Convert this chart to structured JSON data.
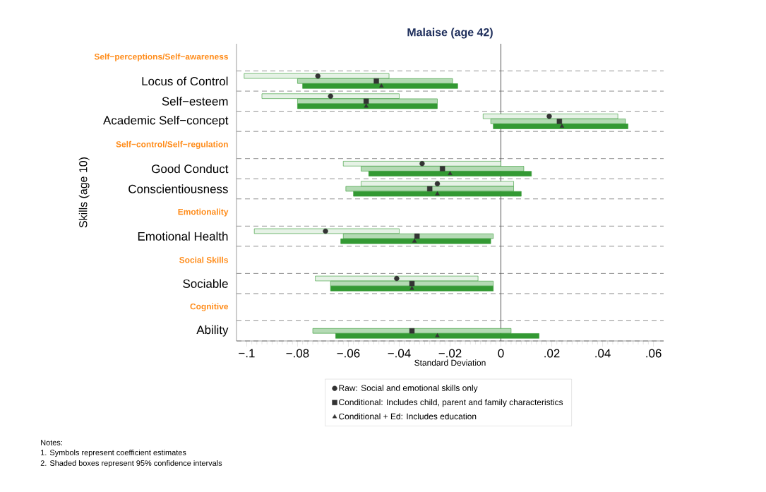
{
  "chart_data": {
    "type": "bar",
    "orientation": "horizontal",
    "title": "Malaise (age 42)",
    "xlabel": "Standard Deviation",
    "ylabel": "Skills (age 10)",
    "categories": [
      "Self−perceptions/Self−awareness",
      "Locus of Control",
      "Self−esteem",
      "Academic Self−concept",
      "Self−control/Self−regulation",
      "Good Conduct",
      "Conscientiousness",
      "Emotionality",
      "Emotional Health",
      "Social Skills",
      "Sociable",
      "Cognitive",
      "Ability"
    ],
    "xlim": [
      -0.104,
      0.064
    ],
    "xticks": [
      {
        "value": -0.1,
        "label": "−.1"
      },
      {
        "value": -0.08,
        "label": "−.08"
      },
      {
        "value": -0.06,
        "label": "−.06"
      },
      {
        "value": -0.04,
        "label": "−.04"
      },
      {
        "value": -0.02,
        "label": "−.02"
      },
      {
        "value": 0,
        "label": "0"
      },
      {
        "value": 0.02,
        "label": ".02"
      },
      {
        "value": 0.04,
        "label": ".04"
      },
      {
        "value": 0.06,
        "label": ".06"
      }
    ],
    "grid": "y",
    "legend": "bottom",
    "ref_lines": [
      {
        "axis": "x",
        "value": 0
      }
    ],
    "annotations": [
      "Notes:",
      "1. Symbols represent coefficient estimates",
      "2. Shaded boxes represent 95% confidence intervals"
    ],
    "series": [
      {
        "color": "#e6f2e6",
        "base": [
          null,
          -0.101,
          -0.094,
          -0.007,
          null,
          -0.062,
          -0.055,
          null,
          -0.097,
          null,
          -0.073,
          null,
          null
        ],
        "values": [
          null,
          0.057,
          0.054,
          0.053,
          null,
          0.062,
          0.06,
          null,
          0.057,
          null,
          0.064,
          null,
          null
        ]
      },
      {
        "color": "#b4dab4",
        "base": [
          null,
          -0.08,
          -0.08,
          -0.004,
          null,
          -0.055,
          -0.061,
          null,
          -0.062,
          null,
          -0.067,
          null,
          -0.074
        ],
        "values": [
          null,
          0.061,
          0.055,
          0.053,
          null,
          0.064,
          0.066,
          null,
          0.059,
          null,
          0.064,
          null,
          0.078
        ]
      },
      {
        "color": "#339933",
        "base": [
          null,
          -0.078,
          -0.08,
          -0.003,
          null,
          -0.052,
          -0.058,
          null,
          -0.063,
          null,
          -0.067,
          null,
          -0.065
        ],
        "values": [
          null,
          0.061,
          0.055,
          0.053,
          null,
          0.064,
          0.066,
          null,
          0.059,
          null,
          0.064,
          null,
          0.08
        ]
      },
      {
        "type": "scatter",
        "name": "Raw: Social and emotional skills only",
        "color": "#333333",
        "marker": "circle",
        "values": [
          null,
          -0.072,
          -0.067,
          0.019,
          null,
          -0.031,
          -0.025,
          null,
          -0.069,
          null,
          -0.041,
          null,
          null
        ]
      },
      {
        "type": "scatter",
        "name": "Conditional: Includes child, parent and family characteristics",
        "color": "#333333",
        "marker": "square",
        "values": [
          null,
          -0.049,
          -0.053,
          0.023,
          null,
          -0.023,
          -0.028,
          null,
          -0.033,
          null,
          -0.035,
          null,
          -0.035
        ]
      },
      {
        "type": "scatter",
        "name": "Conditional + Ed: Includes education",
        "color": "#333333",
        "marker": "triangle",
        "values": [
          null,
          -0.047,
          -0.053,
          0.024,
          null,
          -0.02,
          -0.025,
          null,
          -0.034,
          null,
          -0.035,
          null,
          -0.025
        ]
      }
    ]
  }
}
